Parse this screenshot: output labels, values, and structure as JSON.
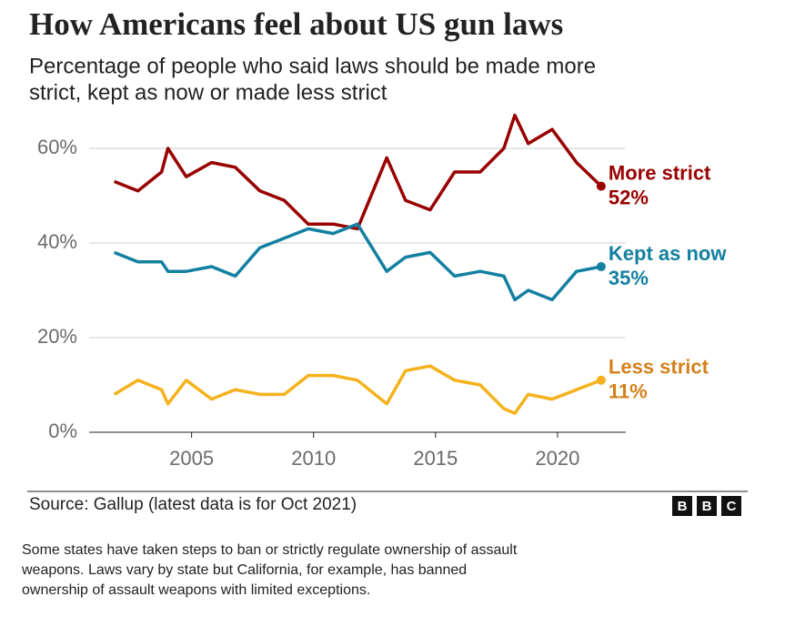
{
  "chart_data": {
    "type": "line",
    "title": "How Americans feel about US gun laws",
    "subtitle": [
      "Percentage of people who said laws should be made more",
      "strict, kept as now or made less strict"
    ],
    "x": [
      2001.83,
      2002.8,
      2003.77,
      2004.03,
      2004.78,
      2005.82,
      2006.79,
      2007.8,
      2008.8,
      2009.78,
      2010.8,
      2011.8,
      2013.0,
      2013.77,
      2014.78,
      2015.78,
      2016.83,
      2017.8,
      2018.25,
      2018.8,
      2019.78,
      2020.78,
      2021.79
    ],
    "series": [
      {
        "name": "More strict",
        "color": "#990000",
        "label_color": "#990000",
        "values": [
          53,
          51,
          55,
          60,
          54,
          57,
          56,
          51,
          49,
          44,
          44,
          43,
          58,
          49,
          47,
          55,
          55,
          60,
          67,
          61,
          64,
          57,
          52
        ],
        "value_labels": [
          null,
          null,
          null,
          null,
          null,
          null,
          null,
          null,
          null,
          null,
          null,
          null,
          null,
          null,
          null,
          null,
          null,
          null,
          null,
          null,
          null,
          null,
          "52%"
        ]
      },
      {
        "name": "Kept as now",
        "color": "#1380a1",
        "label_color": "#1380a1",
        "values": [
          38,
          36,
          36,
          34,
          34,
          35,
          33,
          39,
          41,
          43,
          42,
          44,
          34,
          37,
          38,
          33,
          34,
          33,
          28,
          30,
          28,
          34,
          35
        ],
        "value_labels": [
          null,
          null,
          null,
          null,
          null,
          null,
          null,
          null,
          null,
          null,
          null,
          null,
          null,
          null,
          null,
          null,
          null,
          null,
          null,
          null,
          null,
          null,
          "35%"
        ]
      },
      {
        "name": "Less strict",
        "color": "#f5b21d",
        "label_color": "#d5801a",
        "values": [
          8,
          11,
          9,
          6,
          11,
          7,
          9,
          8,
          8,
          12,
          12,
          11,
          6,
          13,
          14,
          11,
          10,
          5,
          4,
          8,
          7,
          9,
          11
        ],
        "value_labels": [
          null,
          null,
          null,
          null,
          null,
          null,
          null,
          null,
          null,
          null,
          null,
          null,
          null,
          null,
          null,
          null,
          null,
          null,
          null,
          null,
          null,
          null,
          "11%"
        ]
      }
    ],
    "xlim": [
      2000.8,
      2022.8
    ],
    "xticks": [
      2005,
      2010,
      2015,
      2020
    ],
    "ylim": [
      0,
      60
    ],
    "yticks": [
      {
        "value": 0,
        "label": "0%"
      },
      {
        "value": 20,
        "label": "20%"
      },
      {
        "value": 40,
        "label": "40%"
      },
      {
        "value": 60,
        "label": "60%"
      }
    ],
    "grid": true,
    "source": "Source: Gallup (latest data is for Oct 2021)",
    "logo": [
      "B",
      "B",
      "C"
    ],
    "note": [
      "Some states have taken steps to ban or strictly regulate ownership of assault",
      "weapons. Laws vary by state but California, for example, has banned",
      "ownership of assault weapons with limited exceptions."
    ]
  }
}
